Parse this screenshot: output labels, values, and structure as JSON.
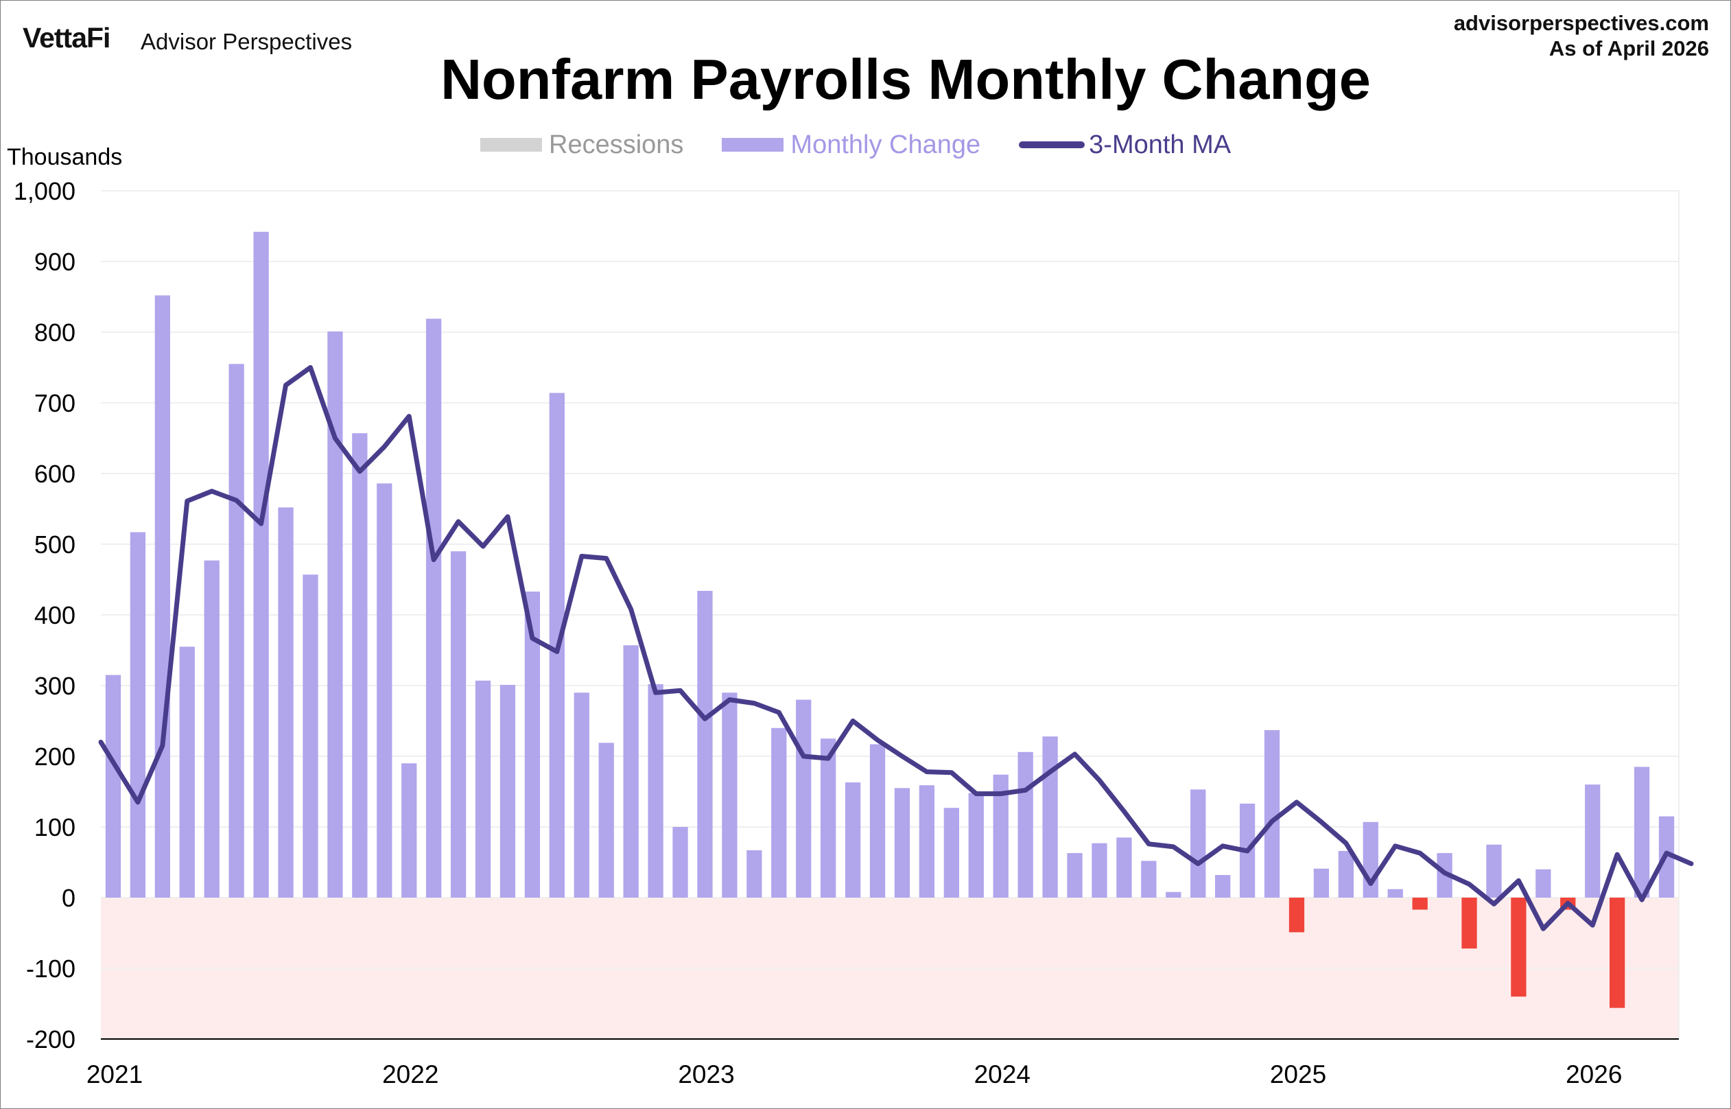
{
  "header": {
    "brand_logo": "VettaFi",
    "brand_name": "Advisor Perspectives",
    "site": "advisorperspectives.com",
    "as_of": "As of April 2026"
  },
  "colors": {
    "monthly_change": "#b1a5ec",
    "negative": "#f0443a",
    "ma_line": "#483d8b",
    "recession": "#d3d3d3",
    "negative_band": "#fdeceb",
    "grid": "#efefef"
  },
  "chart_data": {
    "type": "bar",
    "title": "Nonfarm Payrolls Monthly Change",
    "ylabel": "Thousands",
    "xlabel": "",
    "ylim": [
      -200,
      1000
    ],
    "yticks": [
      -200,
      -100,
      0,
      100,
      200,
      300,
      400,
      500,
      600,
      700,
      800,
      900,
      1000
    ],
    "ytick_labels": [
      "-200",
      "-100",
      "0",
      "100",
      "200",
      "300",
      "400",
      "500",
      "600",
      "700",
      "800",
      "900",
      "1,000"
    ],
    "xtick_labels": [
      "2021",
      "2022",
      "2023",
      "2024",
      "2025",
      "2026"
    ],
    "legend_position": "top-center",
    "grid": true,
    "start_month": "2021-01",
    "legend": [
      {
        "name": "Recessions",
        "style": "box"
      },
      {
        "name": "Monthly Change",
        "style": "box"
      },
      {
        "name": "3-Month MA",
        "style": "line"
      }
    ],
    "series": [
      {
        "name": "Monthly Change",
        "type": "bar",
        "values": [
          315,
          517,
          852,
          355,
          477,
          755,
          942,
          552,
          457,
          801,
          657,
          586,
          190,
          819,
          490,
          307,
          301,
          433,
          714,
          290,
          219,
          357,
          302,
          100,
          434,
          290,
          67,
          240,
          280,
          225,
          163,
          217,
          155,
          159,
          127,
          148,
          174,
          206,
          228,
          63,
          77,
          85,
          52,
          8,
          153,
          32,
          133,
          237,
          -49,
          41,
          66,
          107,
          12,
          -17,
          63,
          -72,
          75,
          -140,
          40,
          -17,
          160,
          -156,
          185,
          115
        ]
      },
      {
        "name": "3-Month MA",
        "type": "line",
        "values": [
          220,
          135,
          215,
          561,
          575,
          562,
          529,
          725,
          750,
          650,
          603,
          638,
          681,
          478,
          532,
          497,
          539,
          367,
          348,
          483,
          480,
          408,
          290,
          293,
          253,
          280,
          275,
          262,
          200,
          197,
          250,
          223,
          200,
          178,
          177,
          147,
          147,
          152,
          178,
          203,
          166,
          122,
          76,
          72,
          48,
          73,
          66,
          108,
          135,
          107,
          77,
          20,
          73,
          63,
          35,
          19,
          -9,
          24,
          -44,
          -8,
          -39,
          61,
          -3,
          63,
          48
        ]
      }
    ]
  }
}
